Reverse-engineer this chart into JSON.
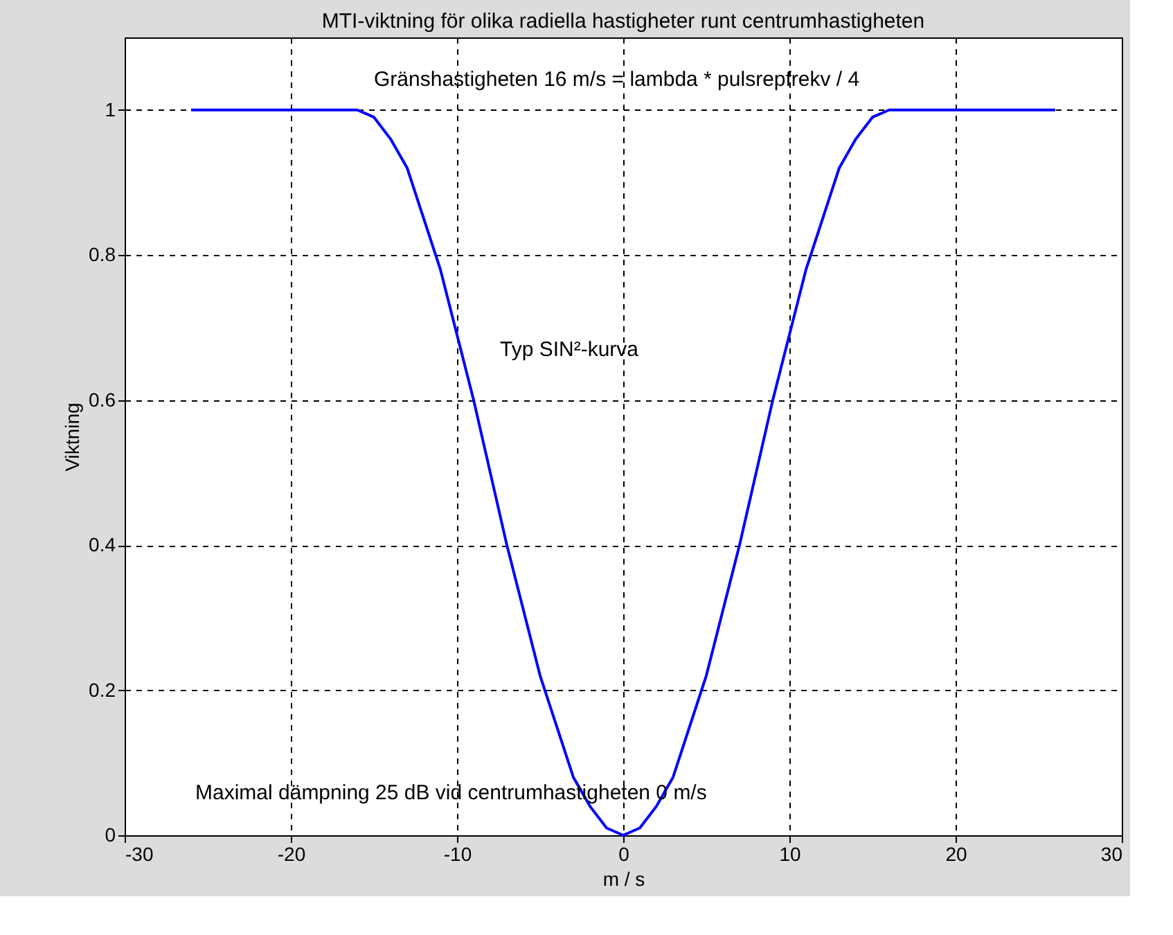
{
  "chart_data": {
    "type": "line",
    "title": "MTI-viktning för olika radiella hastigheter runt centrumhastigheten",
    "xlabel": "m / s",
    "ylabel": "Viktning",
    "x": [
      -26,
      -16,
      -15,
      -14,
      -13,
      -12,
      -11,
      -10,
      -9,
      -8,
      -7,
      -6,
      -5,
      -4,
      -3,
      -2,
      -1,
      0,
      1,
      2,
      3,
      4,
      5,
      6,
      7,
      8,
      9,
      10,
      11,
      12,
      13,
      14,
      15,
      16,
      26
    ],
    "series": [
      {
        "color": "#0000ff",
        "values": [
          1,
          1,
          0.99,
          0.96,
          0.92,
          0.85,
          0.78,
          0.69,
          0.6,
          0.5,
          0.4,
          0.31,
          0.22,
          0.15,
          0.08,
          0.04,
          0.01,
          0,
          0.01,
          0.04,
          0.08,
          0.15,
          0.22,
          0.31,
          0.4,
          0.5,
          0.6,
          0.69,
          0.78,
          0.85,
          0.92,
          0.96,
          0.99,
          1,
          1
        ]
      }
    ],
    "xlim": [
      -30,
      30
    ],
    "xticks": [
      -30,
      -20,
      -10,
      0,
      10,
      20,
      30
    ],
    "ylim": [
      0,
      1.1
    ],
    "yticks": [
      0,
      0.2,
      0.4,
      0.6,
      0.8,
      1
    ],
    "grid": true,
    "marker": "none",
    "line_style": "solid",
    "annotations": [
      "Gränshastigheten  16 m/s = lambda * pulsrepfrekv / 4",
      "Typ SIN²-kurva",
      "Maximal dämpning 25 dB vid centrumhastigheten 0 m/s"
    ]
  }
}
